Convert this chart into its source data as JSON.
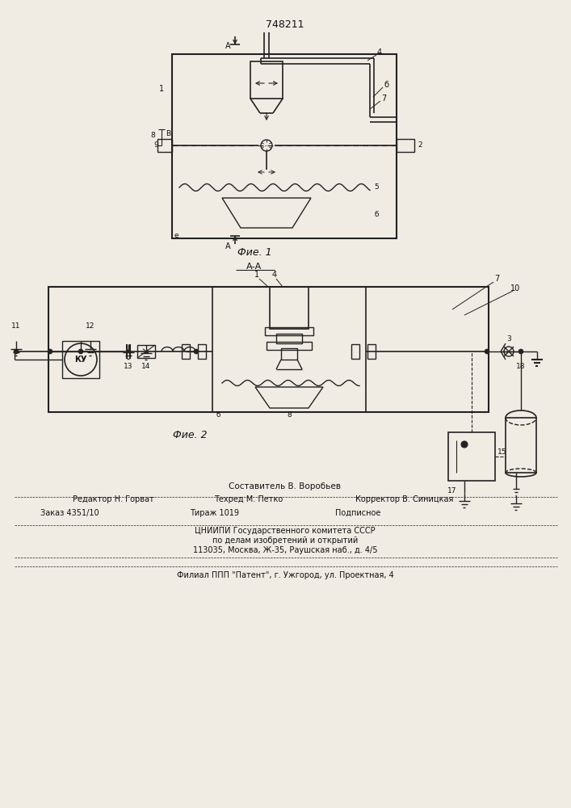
{
  "patent_number": "748211",
  "fig1_caption": "Фие. 1",
  "fig2_caption": "Фие. 2",
  "section_label": "А-А",
  "footer_line1": "Составитель В. Воробьев",
  "footer_line2_left": "Редактор Н. Горват",
  "footer_line2_mid": "Техред М. Петко",
  "footer_line2_right": "Корректор В. Синицкая",
  "footer_line3_left": "Заказ 4351/10",
  "footer_line3_mid": "Тираж 1019",
  "footer_line3_right": "Подписное",
  "footer_line4": "ЦНИИПИ Государственного комитета СССР",
  "footer_line5": "по делам изобретений и открытий",
  "footer_line6": "113035, Москва, Ж-35, Раушская наб., д. 4/5",
  "footer_line7": "Филиал ППП \"Патент\", г. Ужгород, ул. Проектная, 4",
  "bg_color": "#f0ece4",
  "line_color": "#222222",
  "text_color": "#111111"
}
